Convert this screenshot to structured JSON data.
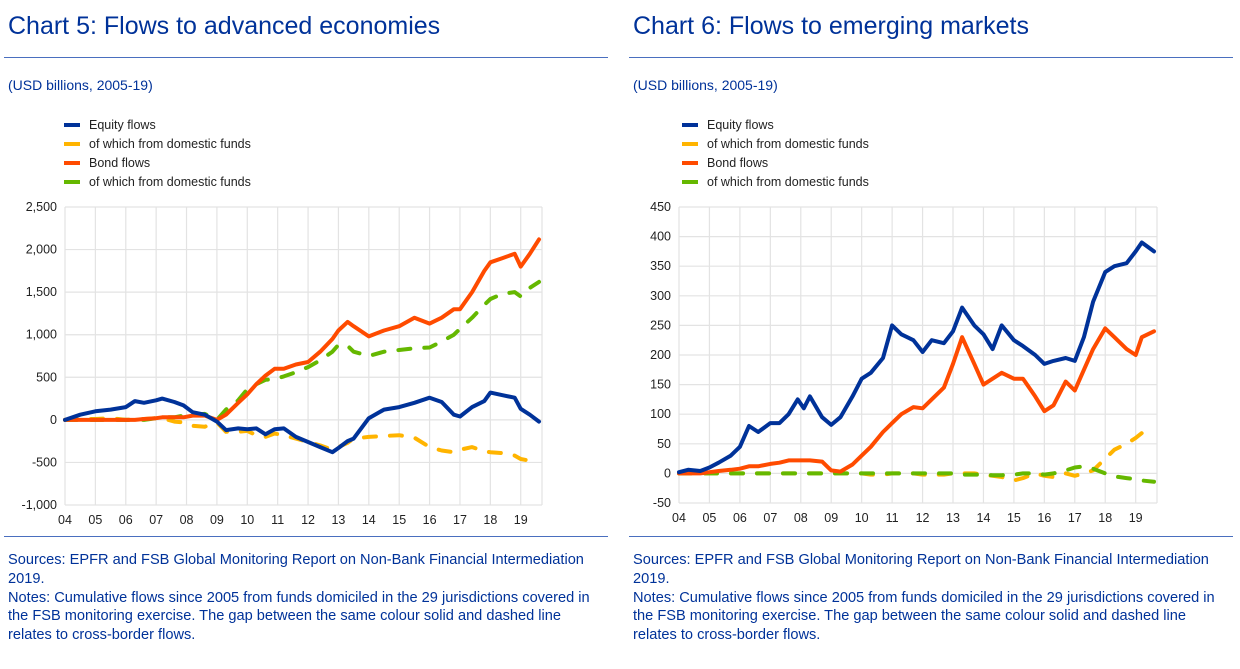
{
  "panels": [
    {
      "title": "Chart 5: Flows to advanced economies",
      "subtitle": "(USD billions, 2005-19)",
      "legend": [
        {
          "label": "Equity flows",
          "color": "#003299"
        },
        {
          "label": "of which from domestic funds",
          "color": "#ffb400"
        },
        {
          "label": "Bond flows",
          "color": "#ff4b00"
        },
        {
          "label": "of which from domestic funds",
          "color": "#65b800"
        }
      ],
      "sources": "Sources: EPFR and FSB Global Monitoring Report on Non-Bank Financial Intermediation 2019.",
      "notes": "Notes: Cumulative flows since 2005 from funds domiciled in the 29 jurisdictions covered in the FSB monitoring exercise. The gap between the same colour solid and dashed line relates to cross-border flows."
    },
    {
      "title": "Chart 6: Flows to emerging markets",
      "subtitle": "(USD billions, 2005-19)",
      "legend": [
        {
          "label": "Equity flows",
          "color": "#003299"
        },
        {
          "label": "of which from domestic funds",
          "color": "#ffb400"
        },
        {
          "label": "Bond flows",
          "color": "#ff4b00"
        },
        {
          "label": "of which from domestic funds",
          "color": "#65b800"
        }
      ],
      "sources": "Sources: EPFR and FSB Global Monitoring Report on Non-Bank Financial Intermediation 2019.",
      "notes": "Notes: Cumulative flows since 2005 from funds domiciled in the 29 jurisdictions covered in the FSB monitoring exercise. The gap between the same colour solid and dashed line relates to cross-border flows."
    }
  ],
  "chart_data": [
    {
      "type": "line",
      "title": "Chart 5: Flows to advanced economies",
      "subtitle": "(USD billions, 2005-19)",
      "xlabel": "",
      "ylabel": "",
      "x_ticks": [
        "04",
        "05",
        "06",
        "07",
        "08",
        "09",
        "10",
        "11",
        "12",
        "13",
        "14",
        "15",
        "16",
        "17",
        "18",
        "19"
      ],
      "y_ticks": [
        "2,500",
        "2,000",
        "1,500",
        "1,000",
        "500",
        "0",
        "-500",
        "-1,000"
      ],
      "y_tick_values": [
        2500,
        2000,
        1500,
        1000,
        500,
        0,
        -500,
        -1000
      ],
      "ylim": [
        -1000,
        2500
      ],
      "xlim": [
        2004,
        2019.7
      ],
      "grid": true,
      "legend_position": "top-left",
      "x": [
        2004.0,
        2004.5,
        2005.0,
        2005.5,
        2006.0,
        2006.3,
        2006.6,
        2007.0,
        2007.2,
        2007.6,
        2007.9,
        2008.2,
        2008.6,
        2009.0,
        2009.3,
        2009.7,
        2010.0,
        2010.3,
        2010.6,
        2010.9,
        2011.2,
        2011.6,
        2012.0,
        2012.4,
        2012.8,
        2013.0,
        2013.3,
        2013.5,
        2014.0,
        2014.5,
        2015.0,
        2015.5,
        2016.0,
        2016.4,
        2016.8,
        2017.0,
        2017.4,
        2017.8,
        2018.0,
        2018.4,
        2018.8,
        2019.0,
        2019.3,
        2019.6
      ],
      "series": [
        {
          "name": "Equity flows",
          "style": "solid",
          "color": "#003299",
          "values": [
            0,
            60,
            100,
            120,
            150,
            220,
            200,
            230,
            250,
            210,
            170,
            90,
            60,
            -20,
            -120,
            -100,
            -110,
            -100,
            -170,
            -110,
            -100,
            -200,
            -260,
            -320,
            -380,
            -330,
            -250,
            -220,
            20,
            120,
            150,
            200,
            260,
            210,
            60,
            40,
            150,
            220,
            320,
            290,
            260,
            130,
            60,
            -20
          ]
        },
        {
          "name": "of which from domestic funds (equity)",
          "style": "dashed",
          "color": "#ffb400",
          "values": [
            0,
            10,
            10,
            20,
            0,
            5,
            10,
            20,
            20,
            -20,
            -30,
            -70,
            -80,
            -30,
            -140,
            -140,
            -130,
            -180,
            -200,
            -160,
            -180,
            -220,
            -260,
            -300,
            -350,
            -320,
            -270,
            -220,
            -200,
            -190,
            -180,
            -210,
            -320,
            -360,
            -380,
            -350,
            -320,
            -370,
            -380,
            -390,
            -420,
            -460,
            -480,
            -500
          ]
        },
        {
          "name": "Bond flows",
          "style": "solid",
          "color": "#ff4b00",
          "values": [
            0,
            0,
            0,
            0,
            0,
            0,
            10,
            20,
            30,
            30,
            30,
            50,
            50,
            0,
            60,
            200,
            300,
            420,
            520,
            600,
            600,
            650,
            680,
            800,
            950,
            1050,
            1150,
            1100,
            980,
            1050,
            1100,
            1200,
            1130,
            1200,
            1300,
            1300,
            1500,
            1750,
            1850,
            1900,
            1950,
            1800,
            1950,
            2120
          ]
        },
        {
          "name": "of which from domestic funds (bond)",
          "style": "dashed",
          "color": "#65b800",
          "values": [
            0,
            0,
            0,
            0,
            0,
            0,
            0,
            20,
            30,
            30,
            50,
            60,
            70,
            0,
            120,
            230,
            360,
            420,
            470,
            480,
            510,
            560,
            620,
            700,
            800,
            880,
            870,
            800,
            750,
            800,
            820,
            840,
            850,
            920,
            1000,
            1070,
            1200,
            1350,
            1420,
            1480,
            1500,
            1450,
            1550,
            1620
          ]
        }
      ]
    },
    {
      "type": "line",
      "title": "Chart 6: Flows to emerging markets",
      "subtitle": "(USD billions, 2005-19)",
      "xlabel": "",
      "ylabel": "",
      "x_ticks": [
        "04",
        "05",
        "06",
        "07",
        "08",
        "09",
        "10",
        "11",
        "12",
        "13",
        "14",
        "15",
        "16",
        "17",
        "18",
        "19"
      ],
      "y_ticks": [
        "450",
        "400",
        "350",
        "300",
        "250",
        "200",
        "150",
        "100",
        "50",
        "0",
        "-50"
      ],
      "y_tick_values": [
        450,
        400,
        350,
        300,
        250,
        200,
        150,
        100,
        50,
        0,
        -50
      ],
      "ylim": [
        -50,
        450
      ],
      "xlim": [
        2004,
        2019.7
      ],
      "grid": true,
      "legend_position": "top-left",
      "x": [
        2004.0,
        2004.3,
        2004.7,
        2005.0,
        2005.3,
        2005.7,
        2006.0,
        2006.3,
        2006.6,
        2007.0,
        2007.3,
        2007.6,
        2007.9,
        2008.1,
        2008.3,
        2008.7,
        2009.0,
        2009.3,
        2009.7,
        2010.0,
        2010.3,
        2010.7,
        2011.0,
        2011.3,
        2011.7,
        2012.0,
        2012.3,
        2012.7,
        2013.0,
        2013.3,
        2013.7,
        2014.0,
        2014.3,
        2014.6,
        2015.0,
        2015.3,
        2015.7,
        2016.0,
        2016.3,
        2016.7,
        2017.0,
        2017.3,
        2017.6,
        2018.0,
        2018.3,
        2018.7,
        2019.0,
        2019.2,
        2019.6
      ],
      "series": [
        {
          "name": "Equity flows",
          "style": "solid",
          "color": "#003299",
          "values": [
            2,
            6,
            4,
            10,
            18,
            30,
            45,
            80,
            70,
            85,
            85,
            100,
            125,
            110,
            130,
            95,
            82,
            95,
            130,
            160,
            170,
            195,
            250,
            235,
            225,
            205,
            225,
            220,
            240,
            280,
            250,
            235,
            210,
            250,
            225,
            215,
            200,
            185,
            190,
            195,
            190,
            230,
            290,
            340,
            350,
            355,
            375,
            390,
            375
          ]
        },
        {
          "name": "of which from domestic funds (equity)",
          "style": "dashed",
          "color": "#ffb400",
          "values": [
            0,
            0,
            0,
            0,
            0,
            0,
            0,
            0,
            0,
            0,
            0,
            0,
            0,
            0,
            0,
            0,
            0,
            0,
            0,
            0,
            -2,
            -2,
            0,
            0,
            0,
            -2,
            -2,
            -2,
            0,
            0,
            0,
            -2,
            -4,
            -6,
            -12,
            -8,
            0,
            -4,
            -6,
            0,
            -4,
            0,
            5,
            25,
            40,
            50,
            60,
            68,
            68
          ]
        },
        {
          "name": "Bond flows",
          "style": "solid",
          "color": "#ff4b00",
          "values": [
            0,
            0,
            0,
            2,
            4,
            6,
            8,
            12,
            12,
            16,
            18,
            22,
            22,
            22,
            22,
            20,
            5,
            3,
            15,
            30,
            45,
            70,
            85,
            100,
            112,
            110,
            125,
            145,
            185,
            230,
            185,
            150,
            160,
            170,
            160,
            160,
            130,
            105,
            115,
            155,
            140,
            175,
            210,
            245,
            230,
            210,
            200,
            230,
            240
          ]
        },
        {
          "name": "of which from domestic funds (bond)",
          "style": "dashed",
          "color": "#65b800",
          "values": [
            0,
            0,
            0,
            0,
            0,
            0,
            0,
            0,
            0,
            0,
            0,
            0,
            0,
            0,
            0,
            0,
            0,
            0,
            0,
            0,
            0,
            0,
            0,
            0,
            0,
            0,
            0,
            0,
            0,
            -2,
            -2,
            -2,
            -3,
            -3,
            -2,
            0,
            0,
            -2,
            0,
            5,
            10,
            12,
            8,
            0,
            -5,
            -8,
            -10,
            -12,
            -14
          ]
        }
      ]
    }
  ]
}
